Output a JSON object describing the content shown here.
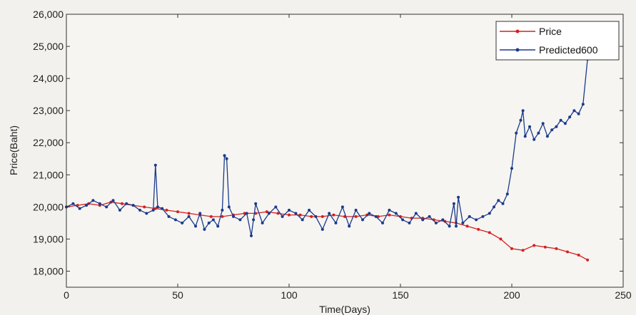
{
  "chart_data": {
    "type": "line",
    "xlabel": "Time(Days)",
    "ylabel": "Price(Baht)",
    "xlim": [
      0,
      250
    ],
    "ylim": [
      17500,
      26000
    ],
    "x_ticks": [
      0,
      50,
      100,
      150,
      200,
      250
    ],
    "y_ticks": [
      18000,
      19000,
      20000,
      21000,
      22000,
      23000,
      24000,
      25000,
      26000
    ],
    "x_tick_labels": [
      "0",
      "50",
      "100",
      "150",
      "200",
      "250"
    ],
    "y_tick_labels": [
      "18,000",
      "19,000",
      "20,000",
      "21,000",
      "22,000",
      "23,000",
      "24,000",
      "25,000",
      "26,000"
    ],
    "grid": false,
    "legend_position": "top-right",
    "colors": {
      "price": "#d42020",
      "predicted": "#1a3a8c",
      "axes": "#333333"
    },
    "series": [
      {
        "name": "Price",
        "color": "#d42020",
        "x": [
          0,
          5,
          10,
          15,
          20,
          25,
          30,
          35,
          40,
          45,
          50,
          55,
          60,
          65,
          70,
          75,
          80,
          85,
          90,
          95,
          100,
          105,
          110,
          115,
          120,
          125,
          130,
          135,
          140,
          145,
          150,
          155,
          160,
          165,
          170,
          175,
          180,
          185,
          190,
          195,
          200,
          205,
          210,
          215,
          220,
          225,
          230,
          234
        ],
        "values": [
          20000,
          20050,
          20100,
          20050,
          20150,
          20100,
          20050,
          20000,
          19950,
          19900,
          19850,
          19800,
          19750,
          19700,
          19700,
          19750,
          19800,
          19800,
          19850,
          19800,
          19750,
          19750,
          19700,
          19700,
          19750,
          19700,
          19700,
          19750,
          19700,
          19750,
          19700,
          19650,
          19650,
          19600,
          19550,
          19500,
          19400,
          19300,
          19200,
          19000,
          18700,
          18650,
          18800,
          18750,
          18700,
          18600,
          18500,
          18350
        ]
      },
      {
        "name": "Predicted600",
        "color": "#1a3a8c",
        "x": [
          0,
          3,
          6,
          9,
          12,
          15,
          18,
          21,
          24,
          27,
          30,
          33,
          36,
          39,
          40,
          41,
          43,
          46,
          49,
          52,
          55,
          58,
          60,
          62,
          64,
          66,
          68,
          70,
          71,
          72,
          73,
          75,
          78,
          81,
          83,
          84,
          85,
          88,
          91,
          94,
          97,
          100,
          103,
          106,
          109,
          112,
          115,
          118,
          121,
          124,
          127,
          130,
          133,
          136,
          139,
          142,
          145,
          148,
          151,
          154,
          157,
          160,
          163,
          166,
          169,
          172,
          174,
          175,
          176,
          178,
          181,
          184,
          187,
          190,
          192,
          194,
          196,
          198,
          200,
          202,
          204,
          205,
          206,
          208,
          210,
          212,
          214,
          216,
          218,
          220,
          222,
          224,
          226,
          228,
          230,
          232,
          234
        ],
        "values": [
          20000,
          20100,
          19950,
          20050,
          20200,
          20100,
          20000,
          20200,
          19900,
          20100,
          20050,
          19900,
          19800,
          19900,
          21300,
          20000,
          19950,
          19700,
          19600,
          19500,
          19700,
          19400,
          19800,
          19300,
          19500,
          19600,
          19400,
          19900,
          21600,
          21500,
          20000,
          19700,
          19600,
          19800,
          19100,
          19600,
          20100,
          19500,
          19800,
          20000,
          19700,
          19900,
          19800,
          19600,
          19900,
          19700,
          19300,
          19800,
          19500,
          20000,
          19400,
          19900,
          19600,
          19800,
          19700,
          19500,
          19900,
          19800,
          19600,
          19500,
          19800,
          19600,
          19700,
          19500,
          19600,
          19400,
          20100,
          19400,
          20300,
          19500,
          19700,
          19600,
          19700,
          19800,
          20000,
          20200,
          20100,
          20400,
          21200,
          22300,
          22700,
          23000,
          22200,
          22500,
          22100,
          22300,
          22600,
          22200,
          22400,
          22500,
          22700,
          22600,
          22800,
          23000,
          22900,
          23200,
          24600
        ]
      }
    ]
  }
}
